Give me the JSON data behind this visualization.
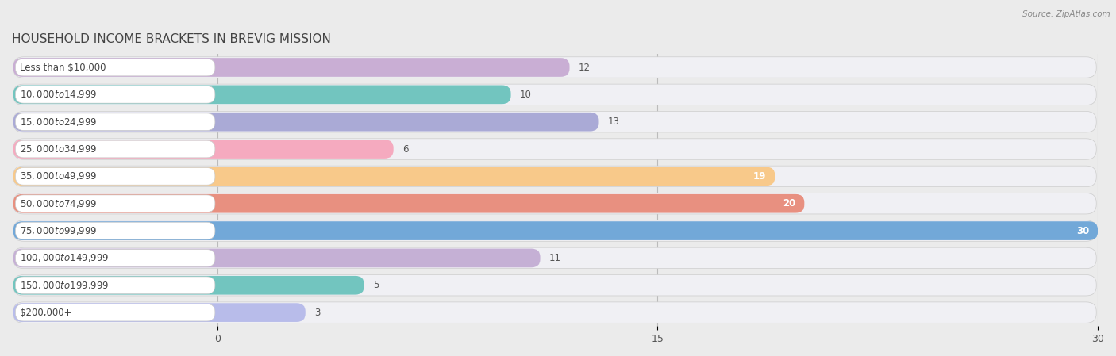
{
  "title": "HOUSEHOLD INCOME BRACKETS IN BREVIG MISSION",
  "source": "Source: ZipAtlas.com",
  "categories": [
    "Less than $10,000",
    "$10,000 to $14,999",
    "$15,000 to $24,999",
    "$25,000 to $34,999",
    "$35,000 to $49,999",
    "$50,000 to $74,999",
    "$75,000 to $99,999",
    "$100,000 to $149,999",
    "$150,000 to $199,999",
    "$200,000+"
  ],
  "values": [
    12,
    10,
    13,
    6,
    19,
    20,
    30,
    11,
    5,
    3
  ],
  "bar_colors": [
    "#c9aed4",
    "#72c5bf",
    "#aaaad6",
    "#f5aabf",
    "#f8c98a",
    "#e89080",
    "#72a8d8",
    "#c5b0d5",
    "#72c5bf",
    "#b8bcea"
  ],
  "xlim_min": -7,
  "xlim_max": 30,
  "xticks": [
    0,
    15,
    30
  ],
  "bg_color": "#ebebeb",
  "row_bg_color": "#f5f5f5",
  "row_bar_bg_color": "#e8e8ec",
  "title_fontsize": 11,
  "label_fontsize": 8.5,
  "value_fontsize": 8.5,
  "bar_height": 0.65,
  "inner_label_color": "#ffffff",
  "outer_label_color": "#555555",
  "inner_threshold": 14
}
